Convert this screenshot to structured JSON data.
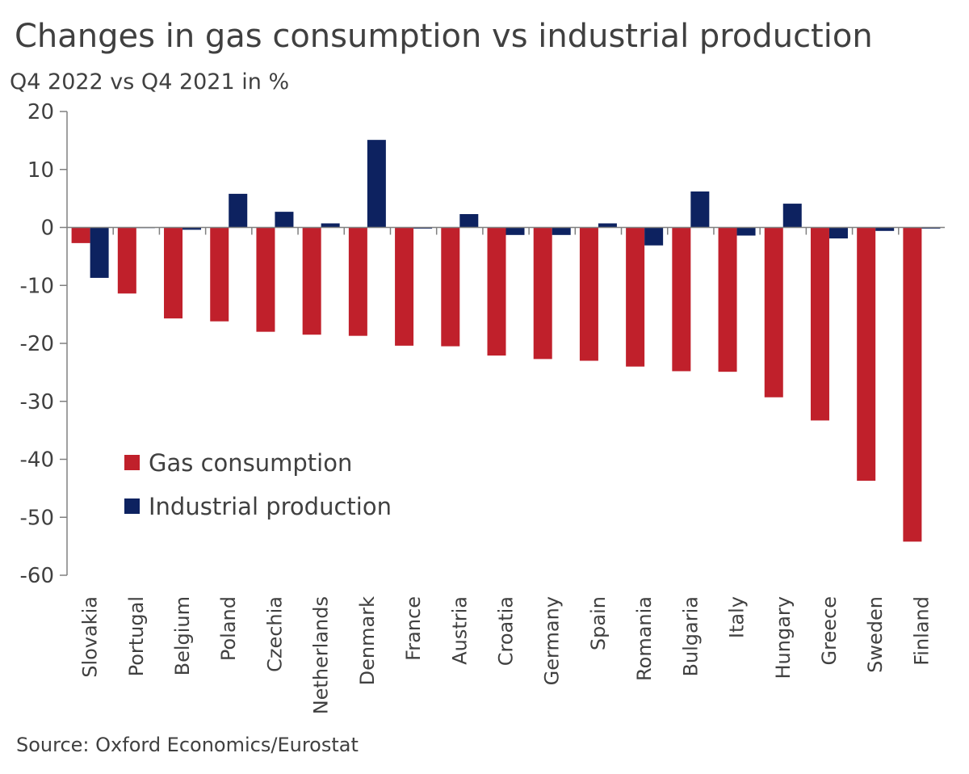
{
  "header": {
    "title": "Changes in gas consumption vs industrial production",
    "subtitle": "Q4 2022 vs Q4 2021 in %"
  },
  "footer": {
    "source": "Source: Oxford Economics/Eurostat"
  },
  "chart_data": {
    "type": "bar",
    "title": "Changes in gas consumption vs industrial production",
    "subtitle": "Q4 2022 vs Q4 2021 in %",
    "xlabel": "",
    "ylabel": "",
    "ylim": [
      -60,
      20
    ],
    "yticks": [
      20,
      10,
      0,
      -10,
      -20,
      -30,
      -40,
      -50,
      -60
    ],
    "grid": false,
    "legend_position": "lower-left",
    "categories": [
      "Slovakia",
      "Portugal",
      "Belgium",
      "Poland",
      "Czechia",
      "Netherlands",
      "Denmark",
      "France",
      "Austria",
      "Croatia",
      "Germany",
      "Spain",
      "Romania",
      "Bulgaria",
      "Italy",
      "Hungary",
      "Greece",
      "Sweden",
      "Finland"
    ],
    "series": [
      {
        "name": "Gas consumption",
        "color": "#c0202b",
        "values": [
          -2.7,
          -11.4,
          -15.7,
          -16.2,
          -18.0,
          -18.5,
          -18.7,
          -20.4,
          -20.5,
          -22.1,
          -22.7,
          -23.0,
          -24.0,
          -24.8,
          -24.9,
          -29.3,
          -33.3,
          -43.7,
          -54.2
        ]
      },
      {
        "name": "Industrial production",
        "color": "#0d2260",
        "values": [
          -8.7,
          0.0,
          -0.4,
          5.8,
          2.7,
          0.7,
          15.1,
          -0.2,
          2.3,
          -1.3,
          -1.3,
          0.7,
          -3.1,
          6.2,
          -1.4,
          4.1,
          -1.9,
          -0.6,
          -0.2
        ]
      }
    ]
  }
}
